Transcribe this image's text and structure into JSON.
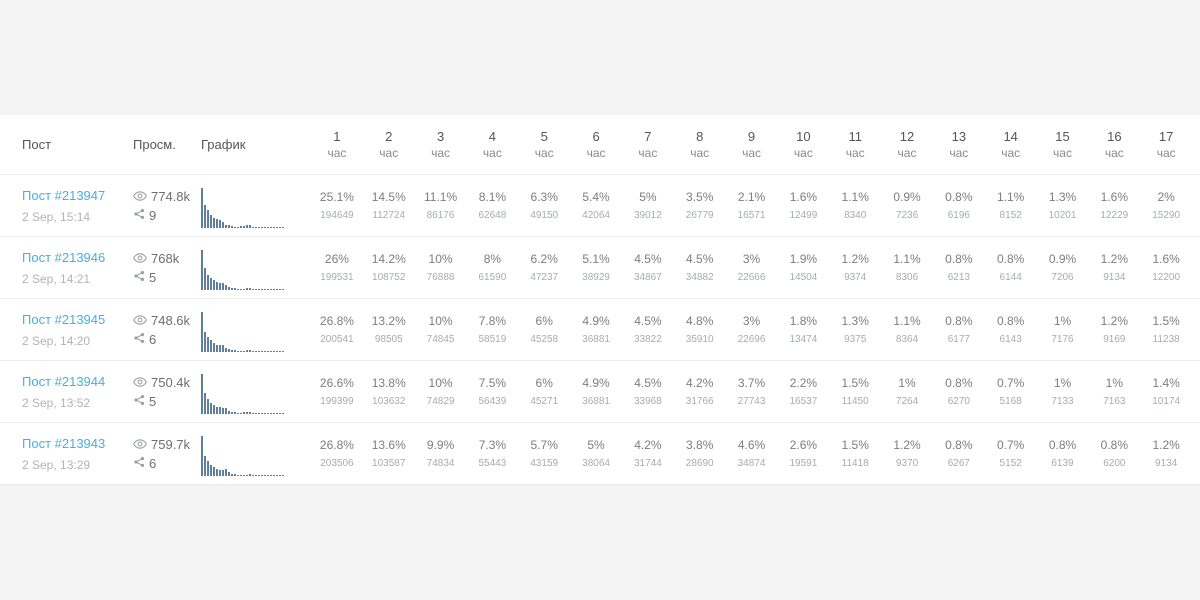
{
  "colors": {
    "accent_link": "#45b0e0",
    "bar": "#5d7f9d"
  },
  "table": {
    "columns": {
      "post": "Пост",
      "views": "Просм.",
      "chart": "График"
    },
    "hours": [
      "1",
      "2",
      "3",
      "4",
      "5",
      "6",
      "7",
      "8",
      "9",
      "10",
      "11",
      "12",
      "13",
      "14",
      "15",
      "16",
      "17"
    ],
    "hour_unit": "час",
    "rows": [
      {
        "title": "Пост #213947",
        "date": "2 Sep, 15:14",
        "views": "774.8k",
        "shares": "9",
        "pct": [
          25.1,
          14.5,
          11.1,
          8.1,
          6.3,
          5.4,
          5,
          3.5,
          2.1,
          1.6,
          1.1,
          0.9,
          0.8,
          1.1,
          1.3,
          1.6,
          2
        ],
        "abs": [
          194649,
          112724,
          86176,
          62648,
          49150,
          42064,
          39012,
          26779,
          16571,
          12499,
          8340,
          7236,
          6196,
          8152,
          10201,
          12229,
          15290
        ]
      },
      {
        "title": "Пост #213946",
        "date": "2 Sep, 14:21",
        "views": "768k",
        "shares": "5",
        "pct": [
          26,
          14.2,
          10,
          8,
          6.2,
          5.1,
          4.5,
          4.5,
          3,
          1.9,
          1.2,
          1.1,
          0.8,
          0.8,
          0.9,
          1.2,
          1.6
        ],
        "abs": [
          199531,
          108752,
          76888,
          61590,
          47237,
          38929,
          34867,
          34882,
          22666,
          14504,
          9374,
          8306,
          6213,
          6144,
          7206,
          9134,
          12200
        ]
      },
      {
        "title": "Пост #213945",
        "date": "2 Sep, 14:20",
        "views": "748.6k",
        "shares": "6",
        "pct": [
          26.8,
          13.2,
          10,
          7.8,
          6,
          4.9,
          4.5,
          4.8,
          3,
          1.8,
          1.3,
          1.1,
          0.8,
          0.8,
          1,
          1.2,
          1.5
        ],
        "abs": [
          200541,
          98505,
          74845,
          58519,
          45258,
          36881,
          33822,
          35910,
          22696,
          13474,
          9375,
          8364,
          6177,
          6143,
          7176,
          9169,
          11238
        ]
      },
      {
        "title": "Пост #213944",
        "date": "2 Sep, 13:52",
        "views": "750.4k",
        "shares": "5",
        "pct": [
          26.6,
          13.8,
          10,
          7.5,
          6,
          4.9,
          4.5,
          4.2,
          3.7,
          2.2,
          1.5,
          1,
          0.8,
          0.7,
          1,
          1,
          1.4
        ],
        "abs": [
          199399,
          103632,
          74829,
          56439,
          45271,
          36881,
          33968,
          31766,
          27743,
          16537,
          11450,
          7264,
          6270,
          5168,
          7133,
          7163,
          10174
        ]
      },
      {
        "title": "Пост #213943",
        "date": "2 Sep, 13:29",
        "views": "759.7k",
        "shares": "6",
        "pct": [
          26.8,
          13.6,
          9.9,
          7.3,
          5.7,
          5,
          4.2,
          3.8,
          4.6,
          2.6,
          1.5,
          1.2,
          0.8,
          0.7,
          0.8,
          0.8,
          1.2
        ],
        "abs": [
          203506,
          103587,
          74834,
          55443,
          43159,
          38064,
          31744,
          28690,
          34874,
          19591,
          11418,
          9370,
          6267,
          5152,
          6139,
          6200,
          9134
        ]
      }
    ]
  },
  "icons": {
    "views": "eye-icon",
    "shares": "share-icon"
  }
}
